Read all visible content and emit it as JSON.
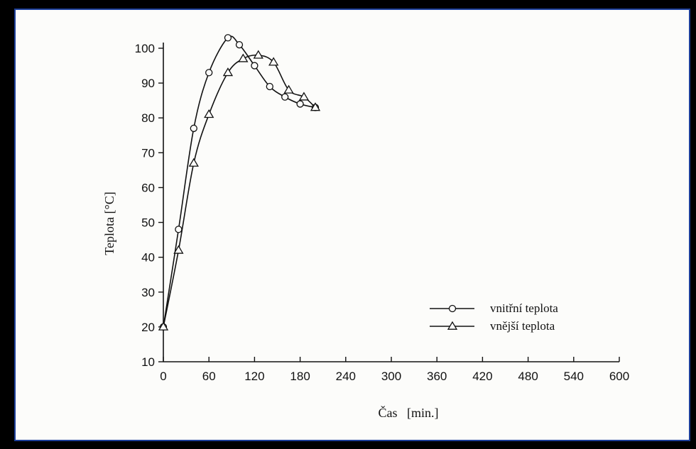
{
  "colors": {
    "background": "#000000",
    "paper": "#fcfcfa",
    "border": "#1d3f9a",
    "ink": "#111111"
  },
  "chart_data": {
    "type": "line",
    "title": "",
    "xlabel": "Čas   [min.]",
    "ylabel": "Teplota  [°C]",
    "xlim": [
      0,
      600
    ],
    "ylim": [
      10,
      105
    ],
    "x_ticks": [
      0,
      60,
      120,
      180,
      240,
      300,
      360,
      420,
      480,
      540,
      600
    ],
    "y_ticks": [
      10,
      20,
      30,
      40,
      50,
      60,
      70,
      80,
      90,
      100
    ],
    "grid": false,
    "legend_position": "lower-right",
    "series": [
      {
        "name": "vnitřní teplota",
        "marker": "circle",
        "x": [
          0,
          20,
          40,
          60,
          85,
          100,
          120,
          140,
          160,
          180,
          200
        ],
        "y": [
          20,
          48,
          77,
          93,
          103,
          101,
          95,
          89,
          86,
          84,
          83
        ]
      },
      {
        "name": "vnější teplota",
        "marker": "triangle",
        "x": [
          0,
          20,
          40,
          60,
          85,
          105,
          125,
          145,
          165,
          185,
          200
        ],
        "y": [
          20,
          42,
          67,
          81,
          93,
          97,
          98,
          96,
          88,
          86,
          83
        ]
      }
    ]
  }
}
